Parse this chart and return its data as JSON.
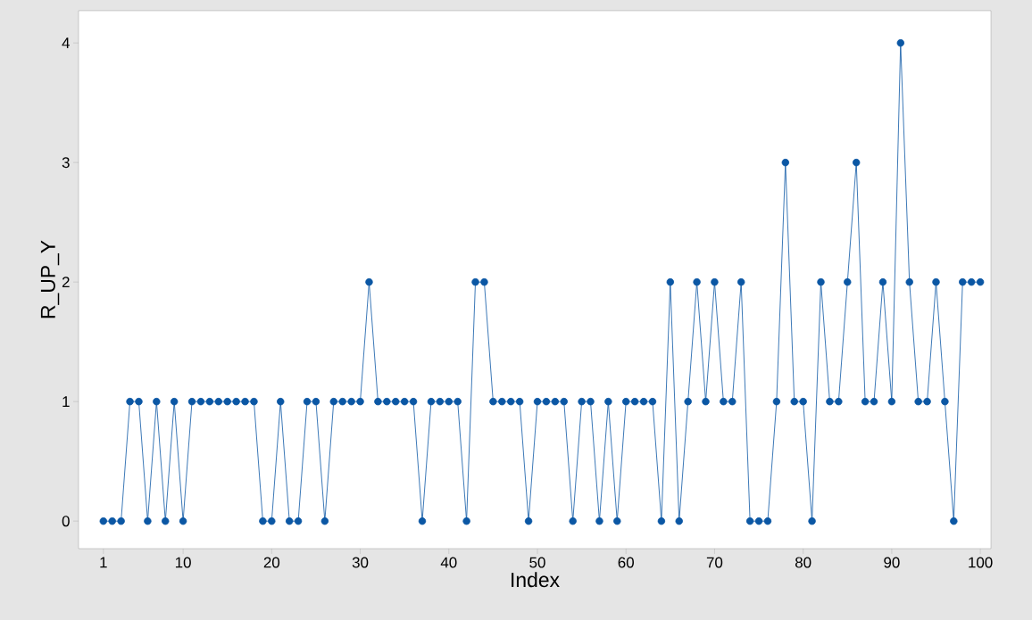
{
  "chart_data": {
    "type": "line",
    "xlabel": "Index",
    "ylabel": "R_UP_Y",
    "x": [
      1,
      2,
      3,
      4,
      5,
      6,
      7,
      8,
      9,
      10,
      11,
      12,
      13,
      14,
      15,
      16,
      17,
      18,
      19,
      20,
      21,
      22,
      23,
      24,
      25,
      26,
      27,
      28,
      29,
      30,
      31,
      32,
      33,
      34,
      35,
      36,
      37,
      38,
      39,
      40,
      41,
      42,
      43,
      44,
      45,
      46,
      47,
      48,
      49,
      50,
      51,
      52,
      53,
      54,
      55,
      56,
      57,
      58,
      59,
      60,
      61,
      62,
      63,
      64,
      65,
      66,
      67,
      68,
      69,
      70,
      71,
      72,
      73,
      74,
      75,
      76,
      77,
      78,
      79,
      80,
      81,
      82,
      83,
      84,
      85,
      86,
      87,
      88,
      89,
      90,
      91,
      92,
      93,
      94,
      95,
      96,
      97,
      98,
      99,
      100
    ],
    "values": [
      0,
      0,
      0,
      1,
      1,
      0,
      1,
      0,
      1,
      0,
      1,
      1,
      1,
      1,
      1,
      1,
      1,
      1,
      0,
      0,
      1,
      0,
      0,
      1,
      1,
      0,
      1,
      1,
      1,
      1,
      2,
      1,
      1,
      1,
      1,
      1,
      0,
      1,
      1,
      1,
      1,
      0,
      2,
      2,
      1,
      1,
      1,
      1,
      0,
      1,
      1,
      1,
      1,
      0,
      1,
      1,
      0,
      1,
      0,
      1,
      1,
      1,
      1,
      0,
      2,
      0,
      1,
      2,
      1,
      2,
      1,
      1,
      2,
      0,
      0,
      0,
      1,
      3,
      1,
      1,
      0,
      2,
      1,
      1,
      2,
      3,
      1,
      1,
      2,
      1,
      4,
      2,
      1,
      1,
      2,
      1,
      0,
      2,
      2,
      2
    ],
    "color": "#0b57a4",
    "marker": "circle",
    "line_style": "solid",
    "grid": false,
    "xlim": [
      -1.8,
      101.2
    ],
    "ylim": [
      -0.23,
      4.27
    ],
    "xticks": [
      1,
      10,
      20,
      30,
      40,
      50,
      60,
      70,
      80,
      90,
      100
    ],
    "yticks": [
      0,
      1,
      2,
      3,
      4
    ]
  }
}
